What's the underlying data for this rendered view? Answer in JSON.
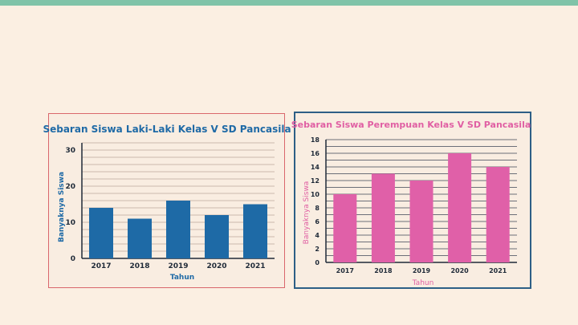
{
  "chart_data": [
    {
      "type": "bar",
      "title": "Sebaran Siswa Laki-Laki Kelas V SD Pancasila",
      "categories": [
        "2017",
        "2018",
        "2019",
        "2020",
        "2021"
      ],
      "values": [
        14,
        11,
        16,
        12,
        15
      ],
      "xlabel": "Tahun",
      "ylabel": "Banyaknya Siswa",
      "ylim": [
        0,
        32
      ],
      "yticks": [
        0,
        10,
        20,
        30
      ],
      "grid": true,
      "color": "#1e6aa6"
    },
    {
      "type": "bar",
      "title": "Sebaran Siswa Perempuan Kelas V SD Pancasila",
      "categories": [
        "2017",
        "2018",
        "2019",
        "2020",
        "2021"
      ],
      "values": [
        10,
        13,
        12,
        16,
        14
      ],
      "xlabel": "Tahun",
      "ylabel": "Banyaknya Siswa",
      "ylim": [
        0,
        18
      ],
      "yticks": [
        0,
        2,
        4,
        6,
        8,
        10,
        12,
        14,
        16,
        18
      ],
      "grid": true,
      "color": "#e060a8"
    }
  ]
}
